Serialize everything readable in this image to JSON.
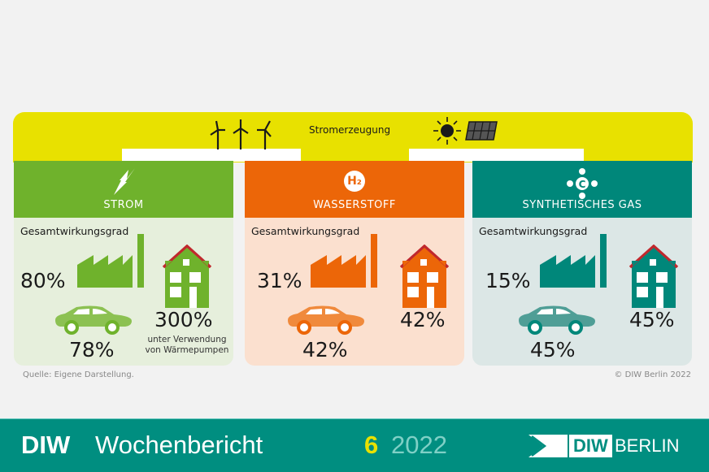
{
  "header": {
    "title": "Stromerzeugung",
    "icons": [
      "wind-turbine-icon",
      "sun-icon",
      "solar-panel-icon"
    ]
  },
  "colors": {
    "yellow": "#e8e100",
    "strom": "#6fb22c",
    "wasserstoff": "#ec6608",
    "gas": "#00877a",
    "roof": "#c0282d"
  },
  "panels": [
    {
      "title": "STROM",
      "icon": "lightning-icon",
      "label": "Gesamtwirkungsgrad",
      "industry": "80%",
      "car": "78%",
      "house": "300%",
      "house_note_1": "unter Verwendung",
      "house_note_2": "von Wärmepumpen"
    },
    {
      "title": "WASSERSTOFF",
      "icon": "h2-icon",
      "icon_text": "H₂",
      "label": "Gesamtwirkungsgrad",
      "industry": "31%",
      "car": "42%",
      "house": "42%"
    },
    {
      "title": "SYNTHETISCHES GAS",
      "icon": "methane-molecule-icon",
      "icon_text": "C",
      "icon_atom": "H",
      "label": "Gesamtwirkungsgrad",
      "industry": "15%",
      "car": "45%",
      "house": "45%"
    }
  ],
  "source": "Quelle: Eigene Darstellung.",
  "copyright": "© DIW Berlin 2022",
  "footer": {
    "diw": "DIW",
    "publication": "Wochenbericht",
    "issue": "6",
    "year": "2022",
    "logo_diw": "DIW",
    "logo_berlin": "BERLIN"
  }
}
